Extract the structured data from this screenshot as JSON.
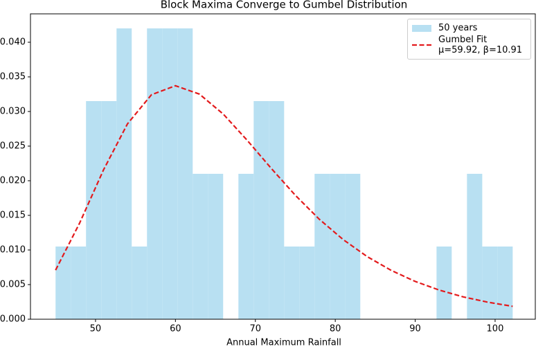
{
  "chart_data": {
    "type": "histogram",
    "title": "Block Maxima Converge to Gumbel Distribution",
    "xlabel": "Annual Maximum Rainfall",
    "xlim": [
      41.86,
      105.03
    ],
    "ylim": [
      0,
      0.0441
    ],
    "xticks": [
      50,
      60,
      70,
      80,
      90,
      100
    ],
    "yticks": [
      {
        "value": 0,
        "label": "0.000"
      },
      {
        "value": 0.005,
        "label": "0.005"
      },
      {
        "value": 0.01,
        "label": "0.010"
      },
      {
        "value": 0.015,
        "label": "0.015"
      },
      {
        "value": 0.02,
        "label": "0.020"
      },
      {
        "value": 0.025,
        "label": "0.025"
      },
      {
        "value": 0.03,
        "label": "0.030"
      },
      {
        "value": 0.035,
        "label": "0.035"
      },
      {
        "value": 0.04,
        "label": "0.040"
      }
    ],
    "legend": "upper right",
    "series": [
      {
        "type": "histogram",
        "name": "50 years",
        "color": "#b8e0f2",
        "bins": [
          45.0,
          46.91,
          48.81,
          50.72,
          52.63,
          54.53,
          56.44,
          58.35,
          60.25,
          62.16,
          64.07,
          65.97,
          67.88,
          69.79,
          71.69,
          73.6,
          75.51,
          77.41,
          79.32,
          81.23,
          83.13,
          85.04,
          86.95,
          88.85,
          90.76,
          92.67,
          94.57,
          96.48,
          98.39,
          100.29,
          102.2
        ],
        "values": [
          0.0105,
          0.0105,
          0.0315,
          0.0315,
          0.042,
          0.0105,
          0.042,
          0.042,
          0.042,
          0.021,
          0.021,
          0,
          0.021,
          0.0315,
          0.0315,
          0.0105,
          0.0105,
          0.021,
          0.021,
          0.021,
          0,
          0,
          0,
          0,
          0,
          0.0105,
          0,
          0.021,
          0.0105,
          0.0105
        ]
      },
      {
        "type": "line",
        "name": "Gumbel Fit\nμ=59.92, β=10.91",
        "color": "#e31a1c",
        "dash": "dashed",
        "x": [
          45,
          48,
          51,
          54,
          57,
          60,
          63,
          66,
          69,
          72,
          75,
          78,
          81,
          84,
          87,
          90,
          93,
          96,
          99,
          102.2
        ],
        "values": [
          0.00709,
          0.01386,
          0.02157,
          0.02822,
          0.03242,
          0.03372,
          0.03251,
          0.02961,
          0.02581,
          0.02177,
          0.0179,
          0.01444,
          0.01149,
          0.00904,
          0.00705,
          0.00546,
          0.00421,
          0.00323,
          0.00248,
          0.00186
        ]
      }
    ]
  }
}
